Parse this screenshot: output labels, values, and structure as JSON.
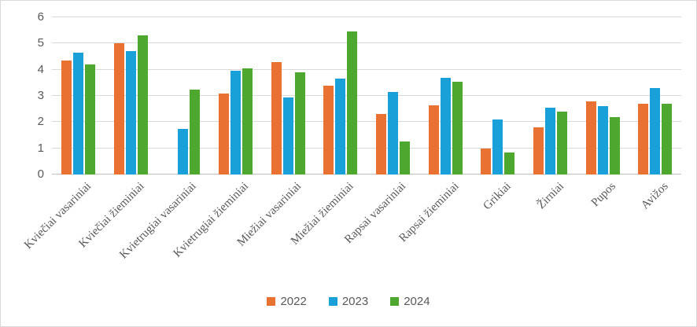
{
  "chart_data": {
    "type": "bar",
    "title": "",
    "xlabel": "",
    "ylabel": "",
    "categories": [
      "Kviečiai vasariniai",
      "Kviečiai žieminiai",
      "Kvietrugiai vasariniai",
      "Kvietrugiai žieminiai",
      "Miežiai vasariniai",
      "Miežiai žieminiai",
      "Rapsai vasariniai",
      "Rapsai žieminiai",
      "Grikiai",
      "Žirniai",
      "Pupos",
      "Avižos"
    ],
    "series": [
      {
        "name": "2022",
        "color": "#E97132",
        "values": [
          4.35,
          5.0,
          null,
          3.1,
          4.3,
          3.4,
          2.3,
          2.65,
          1.0,
          1.8,
          2.8,
          2.7
        ]
      },
      {
        "name": "2023",
        "color": "#19A0D9",
        "values": [
          4.65,
          4.7,
          1.75,
          3.95,
          2.95,
          3.65,
          3.15,
          3.7,
          2.1,
          2.55,
          2.6,
          3.3
        ]
      },
      {
        "name": "2024",
        "color": "#4EA72E",
        "values": [
          4.2,
          5.3,
          3.25,
          4.05,
          3.9,
          5.45,
          1.25,
          3.55,
          0.85,
          2.4,
          2.2,
          2.7
        ]
      }
    ],
    "ylim": [
      0,
      6
    ],
    "yticks": [
      0,
      1,
      2,
      3,
      4,
      5,
      6
    ],
    "grid": true,
    "legend_position": "bottom"
  },
  "colors": {
    "gridline": "#d9d9d9",
    "axisline": "#bfbfbf",
    "text": "#595959",
    "border": "#d9d9d9",
    "background": "#ffffff"
  }
}
